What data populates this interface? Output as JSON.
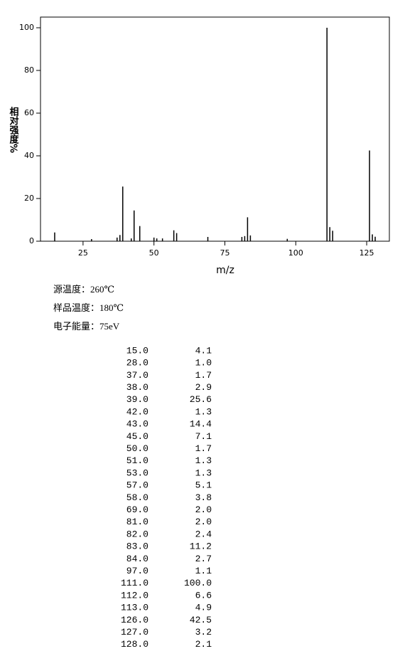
{
  "chart_data": {
    "type": "bar",
    "x_label": "m/z",
    "y_label": "相对强度%",
    "x": [
      15,
      28,
      37,
      38,
      39,
      42,
      43,
      45,
      50,
      51,
      53,
      57,
      58,
      69,
      81,
      82,
      83,
      84,
      97,
      111,
      112,
      113,
      126,
      127,
      128
    ],
    "x_labels": [
      "15.0",
      "28.0",
      "37.0",
      "38.0",
      "39.0",
      "42.0",
      "43.0",
      "45.0",
      "50.0",
      "51.0",
      "53.0",
      "57.0",
      "58.0",
      "69.0",
      "81.0",
      "82.0",
      "83.0",
      "84.0",
      "97.0",
      "111.0",
      "112.0",
      "113.0",
      "126.0",
      "127.0",
      "128.0"
    ],
    "values": [
      4.1,
      1.0,
      1.7,
      2.9,
      25.6,
      1.3,
      14.4,
      7.1,
      1.7,
      1.3,
      1.3,
      5.1,
      3.8,
      2.0,
      2.0,
      2.4,
      11.2,
      2.7,
      1.1,
      100.0,
      6.6,
      4.9,
      42.5,
      3.2,
      2.1
    ],
    "value_labels": [
      "4.1",
      "1.0",
      "1.7",
      "2.9",
      "25.6",
      "1.3",
      "14.4",
      "7.1",
      "1.7",
      "1.3",
      "1.3",
      "5.1",
      "3.8",
      "2.0",
      "2.0",
      "2.4",
      "11.2",
      "2.7",
      "1.1",
      "100.0",
      "6.6",
      "4.9",
      "42.5",
      "3.2",
      "2.1"
    ],
    "color": "#000000",
    "xlim": [
      10,
      133
    ],
    "xticks": [
      25,
      50,
      75,
      100,
      125
    ],
    "ylim": [
      0,
      105
    ],
    "yticks": [
      0,
      20,
      40,
      60,
      80,
      100
    ]
  },
  "conditions": [
    "源温度：260℃",
    "样品温度：180℃",
    "电子能量：75eV"
  ]
}
